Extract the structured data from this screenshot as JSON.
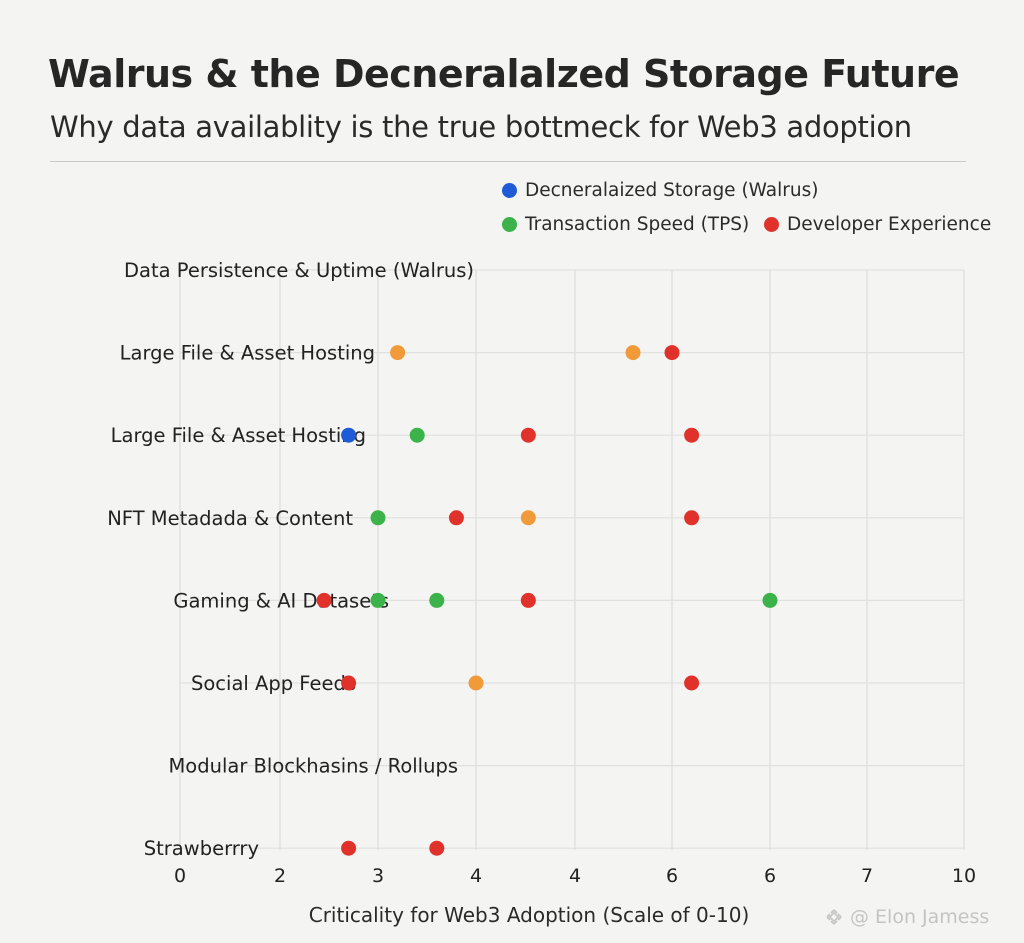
{
  "header": {
    "title": "Walrus & the Decneralalzed Storage Future",
    "subtitle": "Why data availablity is the true bottmeck for Web3 adoption"
  },
  "credit": {
    "icon": "binance-logo-icon",
    "text": "@ Elon Jamess"
  },
  "legend": [
    {
      "label": "Decneralaized Storage (Walrus)",
      "color": "#1f5bd6"
    },
    {
      "label": "Transaction Speed (TPS)",
      "color": "#3bb34a"
    },
    {
      "label": "Developer Experience",
      "color": "#e0322b"
    }
  ],
  "chart_data": {
    "type": "scatter",
    "xlabel": "Criticality for Web3 Adoption (Scale of 0-10)",
    "x_tick_labels": [
      "0",
      "2",
      "3",
      "4",
      "4",
      "6",
      "6",
      "7",
      "10"
    ],
    "categories": [
      "Data Persistence & Uptime (Walrus)",
      "Large File & Asset Hosting",
      "Large File & Asset Hosting",
      "NFT Metadada & Content",
      "Gaming & AI Datasets",
      "Social App Feeds",
      "Modular Blockhasins / Rollups",
      "Strawberrry"
    ],
    "colors": {
      "blue": "#1f5bd6",
      "green": "#3bb34a",
      "red": "#e0322b",
      "orange": "#f09a3a"
    },
    "grid": true,
    "legend_position": "top-right",
    "points": [
      {
        "category": 1,
        "x": 3.2,
        "color": "orange"
      },
      {
        "category": 1,
        "x": 4.6,
        "color": "orange"
      },
      {
        "category": 1,
        "x": 5.0,
        "color": "red"
      },
      {
        "category": 2,
        "x": 2.7,
        "color": "blue"
      },
      {
        "category": 2,
        "x": 3.4,
        "color": "green"
      },
      {
        "category": 2,
        "x": 4.2,
        "color": "red"
      },
      {
        "category": 2,
        "x": 5.2,
        "color": "red"
      },
      {
        "category": 3,
        "x": 3.0,
        "color": "green"
      },
      {
        "category": 3,
        "x": 3.8,
        "color": "red"
      },
      {
        "category": 3,
        "x": 4.2,
        "color": "orange"
      },
      {
        "category": 3,
        "x": 5.2,
        "color": "red"
      },
      {
        "category": 4,
        "x": 2.45,
        "color": "red"
      },
      {
        "category": 4,
        "x": 3.0,
        "color": "green"
      },
      {
        "category": 4,
        "x": 3.6,
        "color": "green"
      },
      {
        "category": 4,
        "x": 4.2,
        "color": "red"
      },
      {
        "category": 4,
        "x": 6.0,
        "color": "green"
      },
      {
        "category": 5,
        "x": 2.7,
        "color": "red"
      },
      {
        "category": 5,
        "x": 4.0,
        "color": "orange"
      },
      {
        "category": 5,
        "x": 5.2,
        "color": "red"
      },
      {
        "category": 7,
        "x": 2.7,
        "color": "red"
      },
      {
        "category": 7,
        "x": 3.6,
        "color": "red"
      }
    ]
  }
}
